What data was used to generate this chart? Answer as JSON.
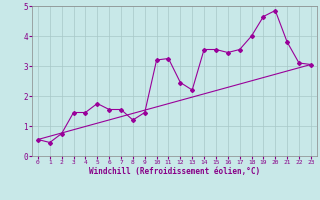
{
  "xlabel": "Windchill (Refroidissement éolien,°C)",
  "ylabel": "",
  "background_color": "#c8e8e8",
  "grid_color": "#a8c8c8",
  "line_color": "#990099",
  "xlim": [
    -0.5,
    23.5
  ],
  "ylim": [
    0,
    5
  ],
  "xticks": [
    0,
    1,
    2,
    3,
    4,
    5,
    6,
    7,
    8,
    9,
    10,
    11,
    12,
    13,
    14,
    15,
    16,
    17,
    18,
    19,
    20,
    21,
    22,
    23
  ],
  "yticks": [
    0,
    1,
    2,
    3,
    4,
    5
  ],
  "line1_x": [
    0,
    1,
    2,
    3,
    4,
    5,
    6,
    7,
    8,
    9,
    10,
    11,
    12,
    13,
    14,
    15,
    16,
    17,
    18,
    19,
    20,
    21,
    22,
    23
  ],
  "line1_y": [
    0.55,
    0.45,
    0.75,
    1.45,
    1.45,
    1.75,
    1.55,
    1.55,
    1.2,
    1.45,
    3.2,
    3.25,
    2.45,
    2.2,
    3.55,
    3.55,
    3.45,
    3.55,
    4.0,
    4.65,
    4.85,
    3.8,
    3.1,
    3.05
  ],
  "line2_x": [
    0,
    23
  ],
  "line2_y": [
    0.55,
    3.05
  ],
  "spine_color": "#888888"
}
